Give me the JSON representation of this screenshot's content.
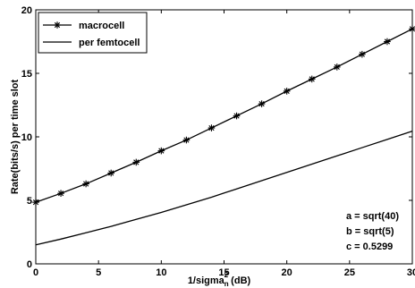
{
  "chart_data": {
    "type": "line",
    "title": "",
    "xlabel": "1/sigma_n^2 (dB)",
    "xlabel_parts": {
      "base": "1/sigma",
      "sup": "2",
      "sub": "n",
      "suffix": " (dB)"
    },
    "ylabel": "Rate(bits/s) per time slot",
    "xlim": [
      0,
      30
    ],
    "ylim": [
      0,
      20
    ],
    "xticks": [
      0,
      5,
      10,
      15,
      20,
      25,
      30
    ],
    "yticks": [
      0,
      5,
      10,
      15,
      20
    ],
    "grid": false,
    "legend_position": "top-left",
    "x": [
      0,
      2,
      4,
      6,
      8,
      10,
      12,
      14,
      16,
      18,
      20,
      22,
      24,
      26,
      28,
      30
    ],
    "series": [
      {
        "name": "macrocell",
        "marker": "asterisk",
        "color": "#000000",
        "values": [
          4.85,
          5.55,
          6.3,
          7.15,
          8.0,
          8.9,
          9.75,
          10.7,
          11.65,
          12.6,
          13.6,
          14.55,
          15.5,
          16.5,
          17.5,
          18.5
        ]
      },
      {
        "name": "per femtocell",
        "marker": "none",
        "color": "#000000",
        "values": [
          1.5,
          1.95,
          2.45,
          2.95,
          3.5,
          4.05,
          4.65,
          5.25,
          5.9,
          6.55,
          7.2,
          7.85,
          8.5,
          9.15,
          9.8,
          10.45
        ]
      }
    ],
    "annotations": [
      "a = sqrt(40)",
      "b = sqrt(5)",
      "c = 0.5299"
    ]
  }
}
